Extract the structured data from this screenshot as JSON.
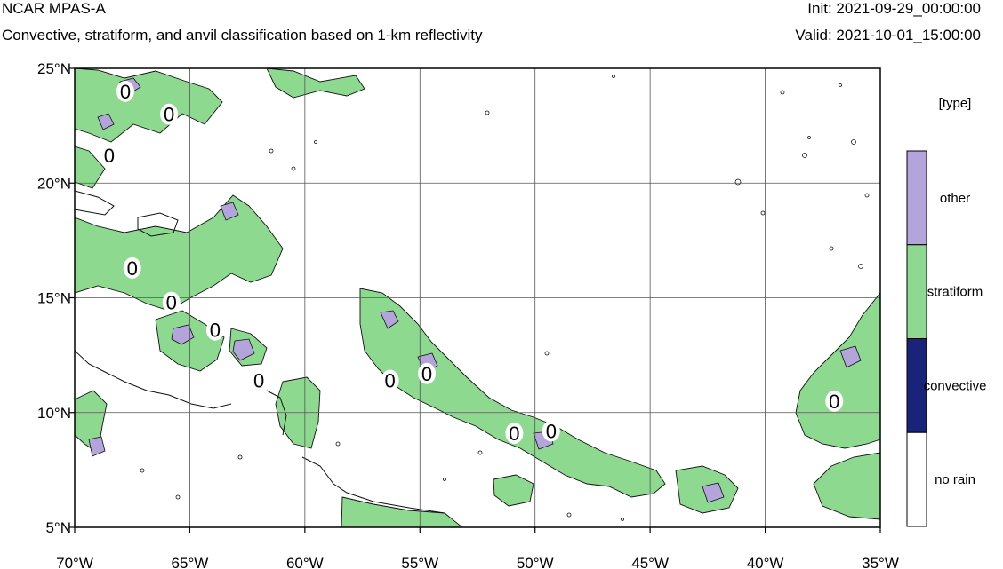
{
  "header": {
    "title": "NCAR MPAS-A",
    "subtitle": "Convective, stratiform, and anvil classification based on 1-km reflectivity",
    "init": "Init: 2021-09-29_00:00:00",
    "valid": "Valid: 2021-10-01_15:00:00"
  },
  "map": {
    "lon_range": [
      -70,
      -35
    ],
    "lat_range": [
      5,
      25
    ],
    "lon_ticks": [
      {
        "value": -70,
        "label": "70°W"
      },
      {
        "value": -65,
        "label": "65°W"
      },
      {
        "value": -60,
        "label": "60°W"
      },
      {
        "value": -55,
        "label": "55°W"
      },
      {
        "value": -50,
        "label": "50°W"
      },
      {
        "value": -45,
        "label": "45°W"
      },
      {
        "value": -40,
        "label": "40°W"
      },
      {
        "value": -35,
        "label": "35°W"
      }
    ],
    "lat_ticks": [
      {
        "value": 5,
        "label": "5°N"
      },
      {
        "value": 10,
        "label": "10°N"
      },
      {
        "value": 15,
        "label": "15°N"
      },
      {
        "value": 20,
        "label": "20°N"
      },
      {
        "value": 25,
        "label": "25°N"
      }
    ],
    "gridlines": true,
    "contour_label": "0",
    "contour_label_positions": [
      [
        -67.8,
        24.0
      ],
      [
        -65.9,
        23.0
      ],
      [
        -68.5,
        21.2
      ],
      [
        -67.5,
        16.3
      ],
      [
        -65.8,
        14.8
      ],
      [
        -63.9,
        13.6
      ],
      [
        -62.0,
        11.4
      ],
      [
        -56.3,
        11.4
      ],
      [
        -54.7,
        11.7
      ],
      [
        -50.9,
        9.1
      ],
      [
        -49.3,
        9.2
      ],
      [
        -37.0,
        10.5
      ]
    ]
  },
  "legend": {
    "title": "[type]",
    "items": [
      {
        "label": "other",
        "color": "#b3a4db"
      },
      {
        "label": "stratiform",
        "color": "#8ed990"
      },
      {
        "label": "convective",
        "color": "#1a237a"
      },
      {
        "label": "no rain",
        "color": "#ffffff"
      }
    ]
  },
  "colors": {
    "stratiform": "#8ed990",
    "other": "#b3a4db",
    "convective": "#1a237a"
  }
}
